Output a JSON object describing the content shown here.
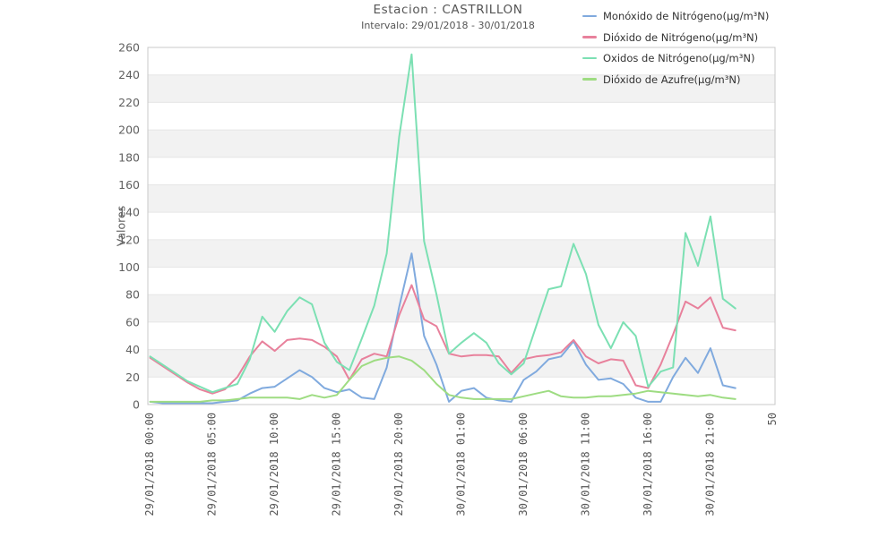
{
  "chart_data": {
    "type": "line",
    "title": "Estacion : CASTRILLON",
    "subtitle": "Intervalo: 29/01/2018 - 30/01/2018",
    "ylabel": "Valores",
    "ylim": [
      0,
      260
    ],
    "ytick_step": 20,
    "xlim_hours": [
      0,
      50
    ],
    "x_start": "29/01/2018 00:00",
    "x_step_hours": 1,
    "xtick_hours": [
      0,
      5,
      10,
      15,
      20,
      25,
      30,
      35,
      40,
      45,
      50
    ],
    "xtick_labels": [
      "29/01/2018 00:00",
      "29/01/2018 05:00",
      "29/01/2018 10:00",
      "29/01/2018 15:00",
      "29/01/2018 20:00",
      "30/01/2018 01:00",
      "30/01/2018 06:00",
      "30/01/2018 11:00",
      "30/01/2018 16:00",
      "30/01/2018 21:00",
      "50"
    ],
    "legend_position": "top-right",
    "grid": "horizontal-lines-with-alternating-bands",
    "band_color": "#f2f2f2",
    "grid_color": "#e6e6e6",
    "axis_line_color": "#c9c9c9",
    "series": [
      {
        "name": "Monóxido de Nitrógeno(µg/m³N)",
        "color": "#80aade",
        "values": [
          2,
          1,
          1,
          1,
          1,
          1,
          2,
          3,
          8,
          12,
          13,
          19,
          25,
          20,
          12,
          9,
          11,
          5,
          4,
          27,
          71,
          110,
          50,
          29,
          2,
          10,
          12,
          5,
          3,
          2,
          18,
          24,
          33,
          35,
          46,
          29,
          18,
          19,
          15,
          5,
          2,
          2,
          20,
          34,
          23,
          41,
          14,
          12
        ]
      },
      {
        "name": "Dióxido de Nitrógeno(µg/m³N)",
        "color": "#e8819c",
        "values": [
          34,
          28,
          22,
          16,
          11,
          8,
          11,
          20,
          35,
          46,
          39,
          47,
          48,
          47,
          42,
          35,
          18,
          33,
          37,
          35,
          65,
          87,
          62,
          57,
          37,
          35,
          36,
          36,
          35,
          23,
          33,
          35,
          36,
          38,
          47,
          35,
          30,
          33,
          32,
          14,
          12,
          29,
          51,
          75,
          70,
          78,
          56,
          54
        ]
      },
      {
        "name": "Oxidos de Nitrógeno(µg/m³N)",
        "color": "#7ce0b3",
        "values": [
          35,
          29,
          23,
          17,
          13,
          9,
          12,
          15,
          33,
          64,
          53,
          68,
          78,
          73,
          45,
          31,
          25,
          48,
          72,
          110,
          195,
          255,
          119,
          80,
          37,
          45,
          52,
          45,
          30,
          22,
          30,
          57,
          84,
          86,
          117,
          95,
          58,
          41,
          60,
          50,
          13,
          24,
          27,
          125,
          101,
          137,
          77,
          70
        ]
      },
      {
        "name": "Dióxido de Azufre(µg/m³N)",
        "color": "#9edc82",
        "values": [
          2,
          2,
          2,
          2,
          2,
          3,
          3,
          4,
          5,
          5,
          5,
          5,
          4,
          7,
          5,
          7,
          18,
          28,
          32,
          34,
          35,
          32,
          25,
          15,
          7,
          5,
          4,
          4,
          4,
          4,
          6,
          8,
          10,
          6,
          5,
          5,
          6,
          6,
          7,
          8,
          10,
          9,
          8,
          7,
          6,
          7,
          5,
          4
        ]
      }
    ]
  }
}
